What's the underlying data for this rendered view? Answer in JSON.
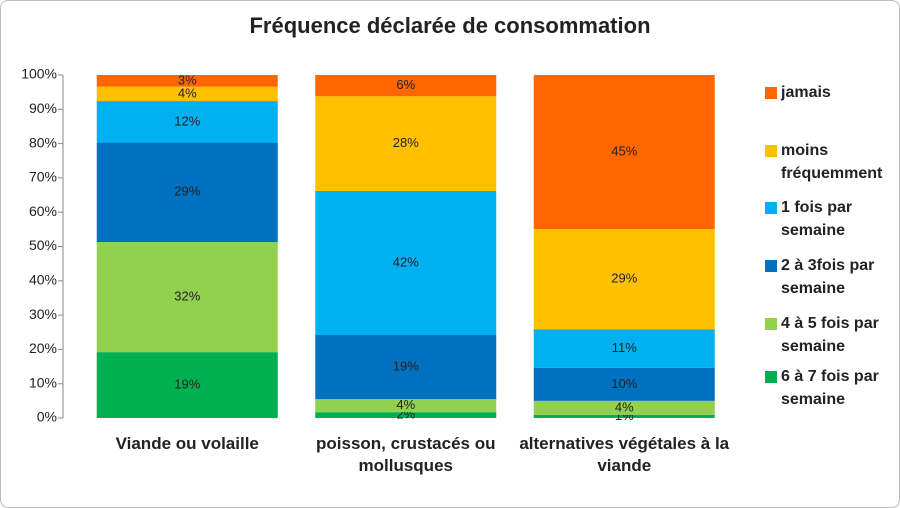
{
  "chart_data": {
    "type": "stacked_bar",
    "title": "Fréquence déclarée de consommation",
    "categories": [
      "Viande ou volaille",
      "poisson, crustacés ou mollusques",
      "alternatives végétales à la viande"
    ],
    "series": [
      {
        "name": "6 à 7 fois par semaine",
        "color": "#00b050",
        "values": [
          19.2,
          1.7,
          0.9
        ],
        "value_labels": [
          "19%",
          "2%",
          "1%"
        ]
      },
      {
        "name": "4 à 5 fois par semaine",
        "color": "#92d050",
        "values": [
          32.1,
          3.8,
          4.1
        ],
        "value_labels": [
          "32%",
          "4%",
          "4%"
        ]
      },
      {
        "name": "2 à 3fois par semaine",
        "color": "#0070c0",
        "values": [
          29,
          18.7,
          9.6
        ],
        "value_labels": [
          "29%",
          "19%",
          "10%"
        ]
      },
      {
        "name": "1 fois par semaine",
        "color": "#00b0f0",
        "values": [
          12.1,
          42,
          11.2
        ],
        "value_labels": [
          "12%",
          "42%",
          "11%"
        ]
      },
      {
        "name": "moins fréquemment",
        "color": "#ffc000",
        "values": [
          4.2,
          27.6,
          29.3
        ],
        "value_labels": [
          "4%",
          "28%",
          "29%"
        ]
      },
      {
        "name": "jamais",
        "color": "#ff6600",
        "values": [
          3.4,
          6.2,
          44.9
        ],
        "value_labels": [
          "3%",
          "6%",
          "45%"
        ]
      }
    ],
    "ylim": [
      0,
      100
    ],
    "yticks": [
      {
        "value": 0,
        "label": "0%"
      },
      {
        "value": 10,
        "label": "10%"
      },
      {
        "value": 20,
        "label": "20%"
      },
      {
        "value": 30,
        "label": "30%"
      },
      {
        "value": 40,
        "label": "40%"
      },
      {
        "value": 50,
        "label": "50%"
      },
      {
        "value": 60,
        "label": "60%"
      },
      {
        "value": 70,
        "label": "70%"
      },
      {
        "value": 80,
        "label": "80%"
      },
      {
        "value": 90,
        "label": "90%"
      },
      {
        "value": 100,
        "label": "100%"
      }
    ],
    "legend": "right"
  }
}
